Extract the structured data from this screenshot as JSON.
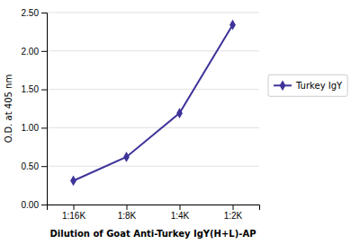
{
  "chart_data": {
    "type": "line",
    "xlabel": "Dilution of Goat Anti-Turkey IgY(H+L)-AP",
    "ylabel": "O.D. at 405 nm",
    "categories": [
      "1:16K",
      "1:8K",
      "1:4K",
      "1:2K"
    ],
    "series": [
      {
        "name": "Turkey IgY",
        "color": "#3d3399",
        "marker": "diamond",
        "values": [
          0.31,
          0.62,
          1.19,
          2.34
        ]
      }
    ],
    "ylim": [
      0.0,
      2.5
    ],
    "yticks": [
      {
        "value": 0.0,
        "label": "0.00"
      },
      {
        "value": 0.5,
        "label": "0.50"
      },
      {
        "value": 1.0,
        "label": "1.00"
      },
      {
        "value": 1.5,
        "label": "1.50"
      },
      {
        "value": 2.0,
        "label": "2.00"
      },
      {
        "value": 2.5,
        "label": "2.50"
      }
    ],
    "grid": true,
    "legend": "right"
  }
}
